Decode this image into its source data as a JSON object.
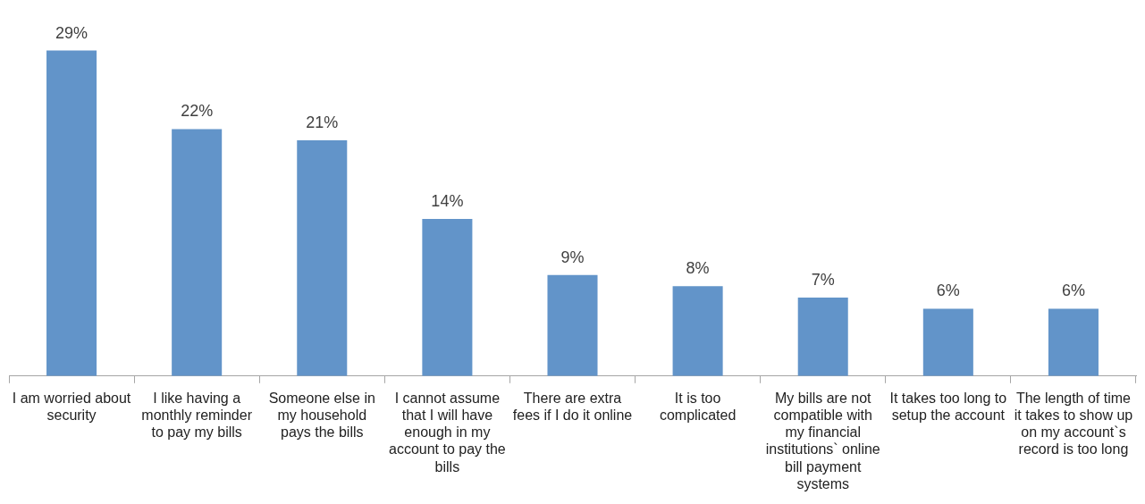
{
  "chart_data": {
    "type": "bar",
    "categories": [
      "I am worried about security",
      "I like having a monthly reminder to pay my bills",
      "Someone else in my household pays the bills",
      "I cannot assume that I will have enough in my account to pay the bills",
      "There are extra fees if I do it online",
      "It is too complicated",
      "My bills are not compatible with my financial institutions` online bill payment systems",
      "It takes too long to setup the account",
      "The length of time it takes to show up on my account`s record is too long"
    ],
    "values": [
      29,
      22,
      21,
      14,
      9,
      8,
      7,
      6,
      6
    ],
    "value_labels": [
      "29%",
      "22%",
      "21%",
      "14%",
      "9%",
      "8%",
      "7%",
      "6%",
      "6%"
    ],
    "color": "#6294c9"
  }
}
